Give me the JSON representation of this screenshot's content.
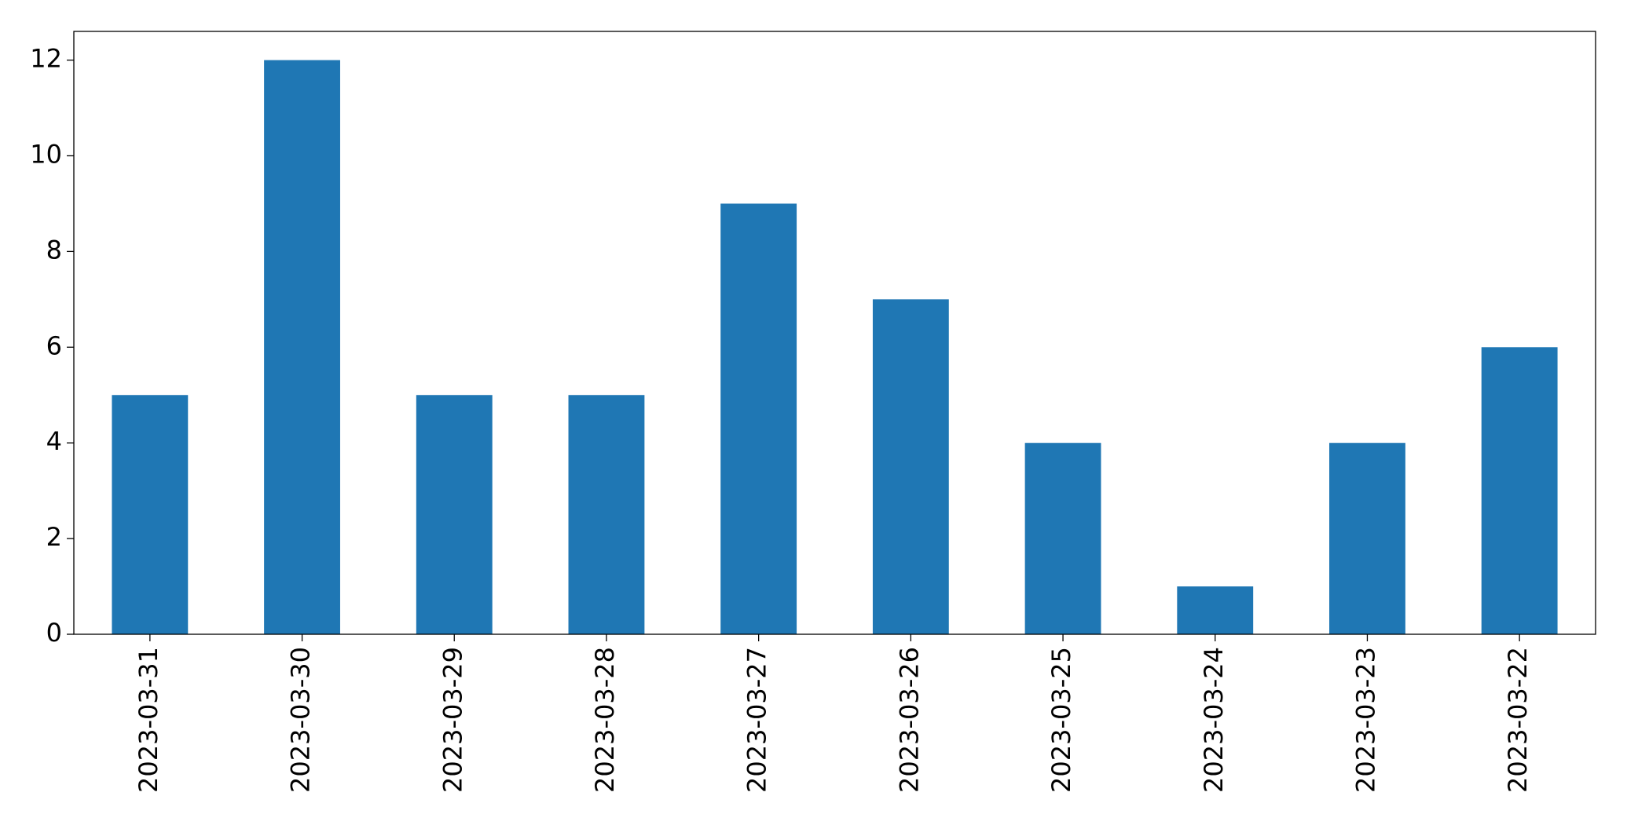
{
  "chart_data": {
    "type": "bar",
    "categories": [
      "2023-03-31",
      "2023-03-30",
      "2023-03-29",
      "2023-03-28",
      "2023-03-27",
      "2023-03-26",
      "2023-03-25",
      "2023-03-24",
      "2023-03-23",
      "2023-03-22"
    ],
    "values": [
      5,
      12,
      5,
      5,
      9,
      7,
      4,
      1,
      4,
      6
    ],
    "color": "#1f77b4",
    "ylim": [
      0,
      12.6
    ],
    "yticks": [
      0,
      2,
      4,
      6,
      8,
      10,
      12
    ],
    "grid": false
  }
}
